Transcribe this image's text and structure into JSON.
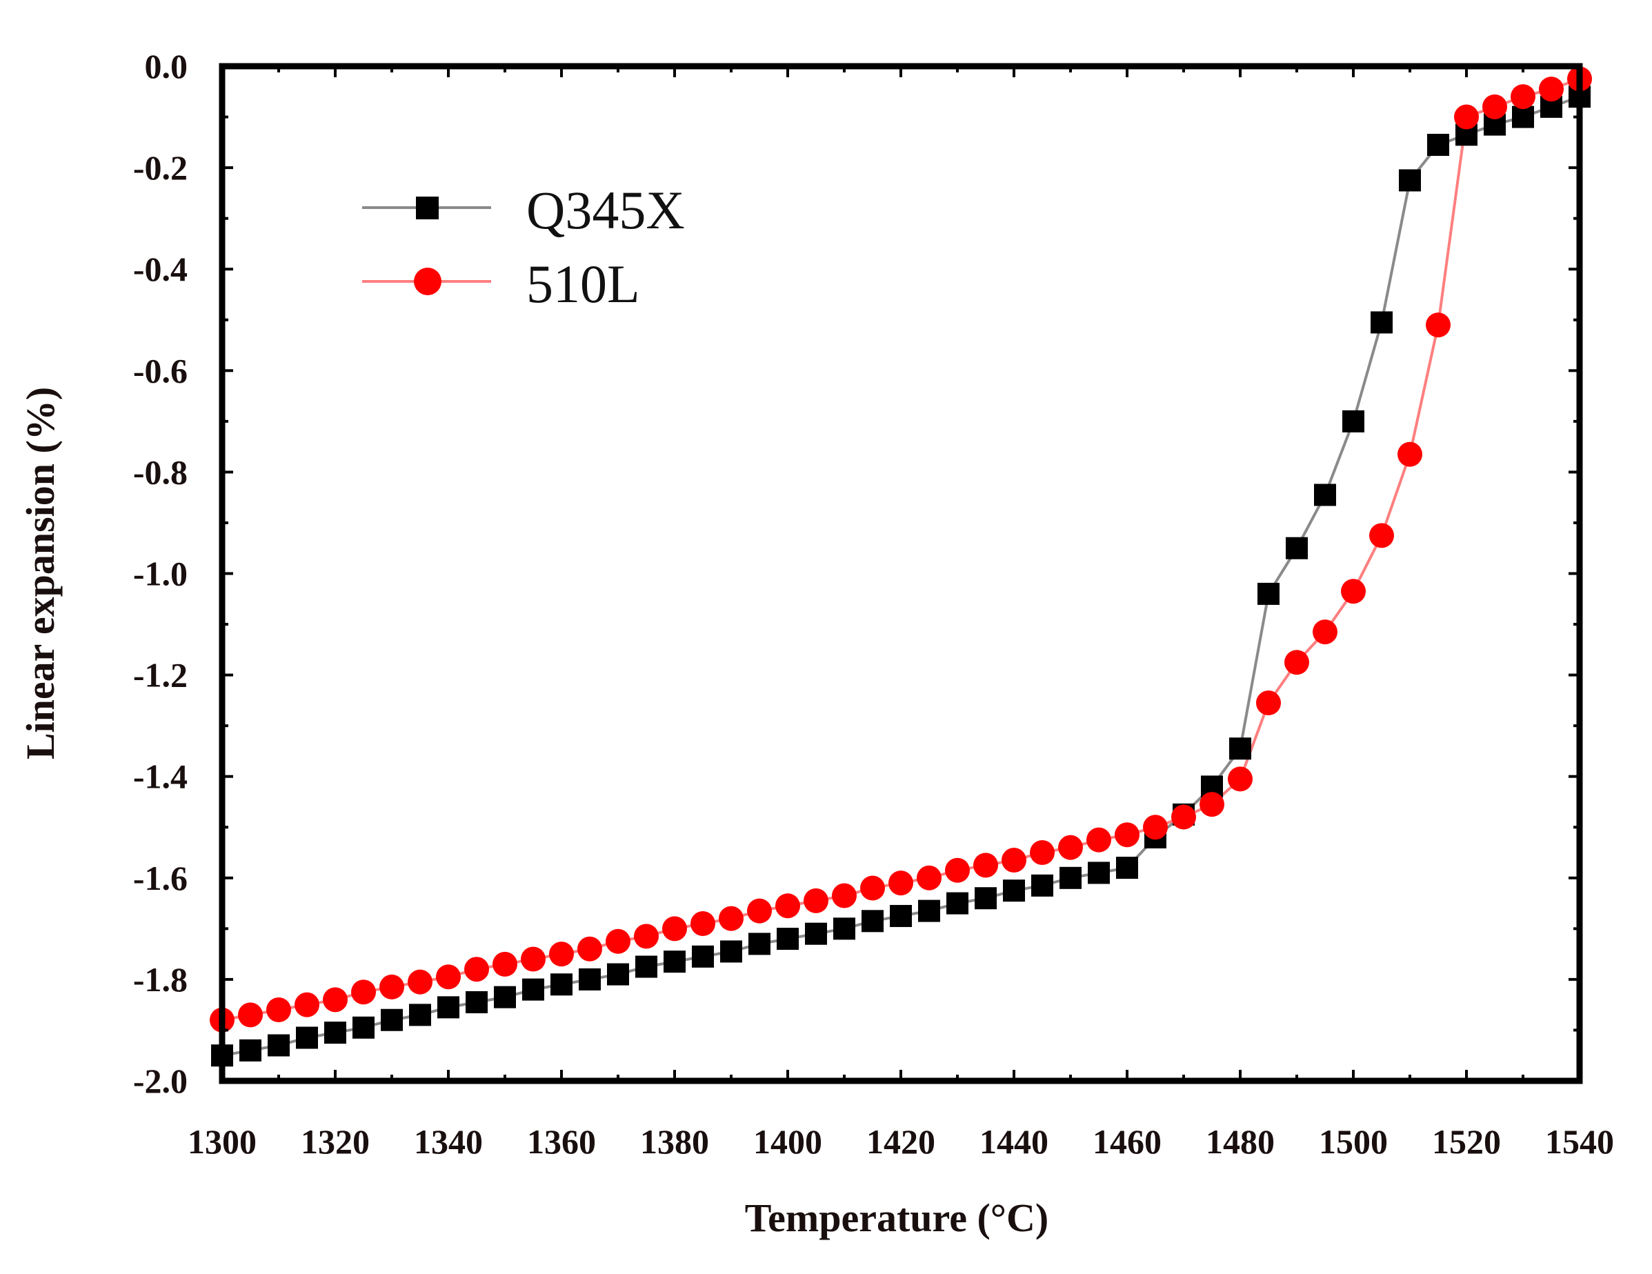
{
  "colors": {
    "q345x": "#000000",
    "q345x_line": "#8a8a8a",
    "l510": "#ff0000",
    "l510_line": "#ff7f7f",
    "axis": "#000000",
    "text": "#1a0f0f"
  },
  "chart_data": {
    "type": "line",
    "title": "",
    "xlabel": "Temperature (°C)",
    "ylabel": "Linear expansion (%)",
    "xlim": [
      1300,
      1540
    ],
    "ylim": [
      -2.0,
      0.0
    ],
    "x_ticks": [
      1300,
      1320,
      1340,
      1360,
      1380,
      1400,
      1420,
      1440,
      1460,
      1480,
      1500,
      1520,
      1540
    ],
    "x_tick_labels": [
      "1300",
      "1320",
      "1340",
      "1360",
      "1380",
      "1400",
      "1420",
      "1440",
      "1460",
      "1480",
      "1500",
      "1520",
      "1540"
    ],
    "y_ticks": [
      0.0,
      -0.2,
      -0.4,
      -0.6,
      -0.8,
      -1.0,
      -1.2,
      -1.4,
      -1.6,
      -1.8,
      -2.0
    ],
    "y_tick_labels": [
      "0.0",
      "-0.2",
      "-0.4",
      "-0.6",
      "-0.8",
      "-1.0",
      "-1.2",
      "-1.4",
      "-1.6",
      "-1.8",
      "-2.0"
    ],
    "grid": false,
    "legend_position": "top-left",
    "series": [
      {
        "name": "Q345X",
        "marker": "square",
        "x": [
          1300,
          1305,
          1310,
          1315,
          1320,
          1325,
          1330,
          1335,
          1340,
          1345,
          1350,
          1355,
          1360,
          1365,
          1370,
          1375,
          1380,
          1385,
          1390,
          1395,
          1400,
          1405,
          1410,
          1415,
          1420,
          1425,
          1430,
          1435,
          1440,
          1445,
          1450,
          1455,
          1460,
          1465,
          1470,
          1475,
          1480,
          1485,
          1490,
          1495,
          1500,
          1505,
          1510,
          1515,
          1520,
          1525,
          1530,
          1535,
          1540
        ],
        "y": [
          -1.95,
          -1.94,
          -1.93,
          -1.915,
          -1.905,
          -1.895,
          -1.88,
          -1.87,
          -1.855,
          -1.845,
          -1.835,
          -1.82,
          -1.81,
          -1.8,
          -1.79,
          -1.775,
          -1.765,
          -1.755,
          -1.745,
          -1.73,
          -1.72,
          -1.71,
          -1.7,
          -1.685,
          -1.675,
          -1.665,
          -1.65,
          -1.64,
          -1.625,
          -1.615,
          -1.6,
          -1.59,
          -1.58,
          -1.52,
          -1.475,
          -1.42,
          -1.345,
          -1.04,
          -0.95,
          -0.845,
          -0.7,
          -0.505,
          -0.225,
          -0.155,
          -0.135,
          -0.115,
          -0.1,
          -0.08,
          -0.06
        ]
      },
      {
        "name": "510L",
        "marker": "circle",
        "x": [
          1300,
          1305,
          1310,
          1315,
          1320,
          1325,
          1330,
          1335,
          1340,
          1345,
          1350,
          1355,
          1360,
          1365,
          1370,
          1375,
          1380,
          1385,
          1390,
          1395,
          1400,
          1405,
          1410,
          1415,
          1420,
          1425,
          1430,
          1435,
          1440,
          1445,
          1450,
          1455,
          1460,
          1465,
          1470,
          1475,
          1480,
          1485,
          1490,
          1495,
          1500,
          1505,
          1510,
          1515,
          1520,
          1525,
          1530,
          1535,
          1540
        ],
        "y": [
          -1.88,
          -1.87,
          -1.86,
          -1.85,
          -1.84,
          -1.825,
          -1.815,
          -1.805,
          -1.795,
          -1.78,
          -1.77,
          -1.76,
          -1.75,
          -1.74,
          -1.725,
          -1.715,
          -1.7,
          -1.69,
          -1.68,
          -1.665,
          -1.655,
          -1.645,
          -1.635,
          -1.62,
          -1.61,
          -1.6,
          -1.585,
          -1.575,
          -1.565,
          -1.55,
          -1.54,
          -1.525,
          -1.515,
          -1.5,
          -1.48,
          -1.455,
          -1.405,
          -1.255,
          -1.175,
          -1.115,
          -1.035,
          -0.925,
          -0.765,
          -0.51,
          -0.1,
          -0.08,
          -0.06,
          -0.045,
          -0.025
        ]
      }
    ]
  }
}
